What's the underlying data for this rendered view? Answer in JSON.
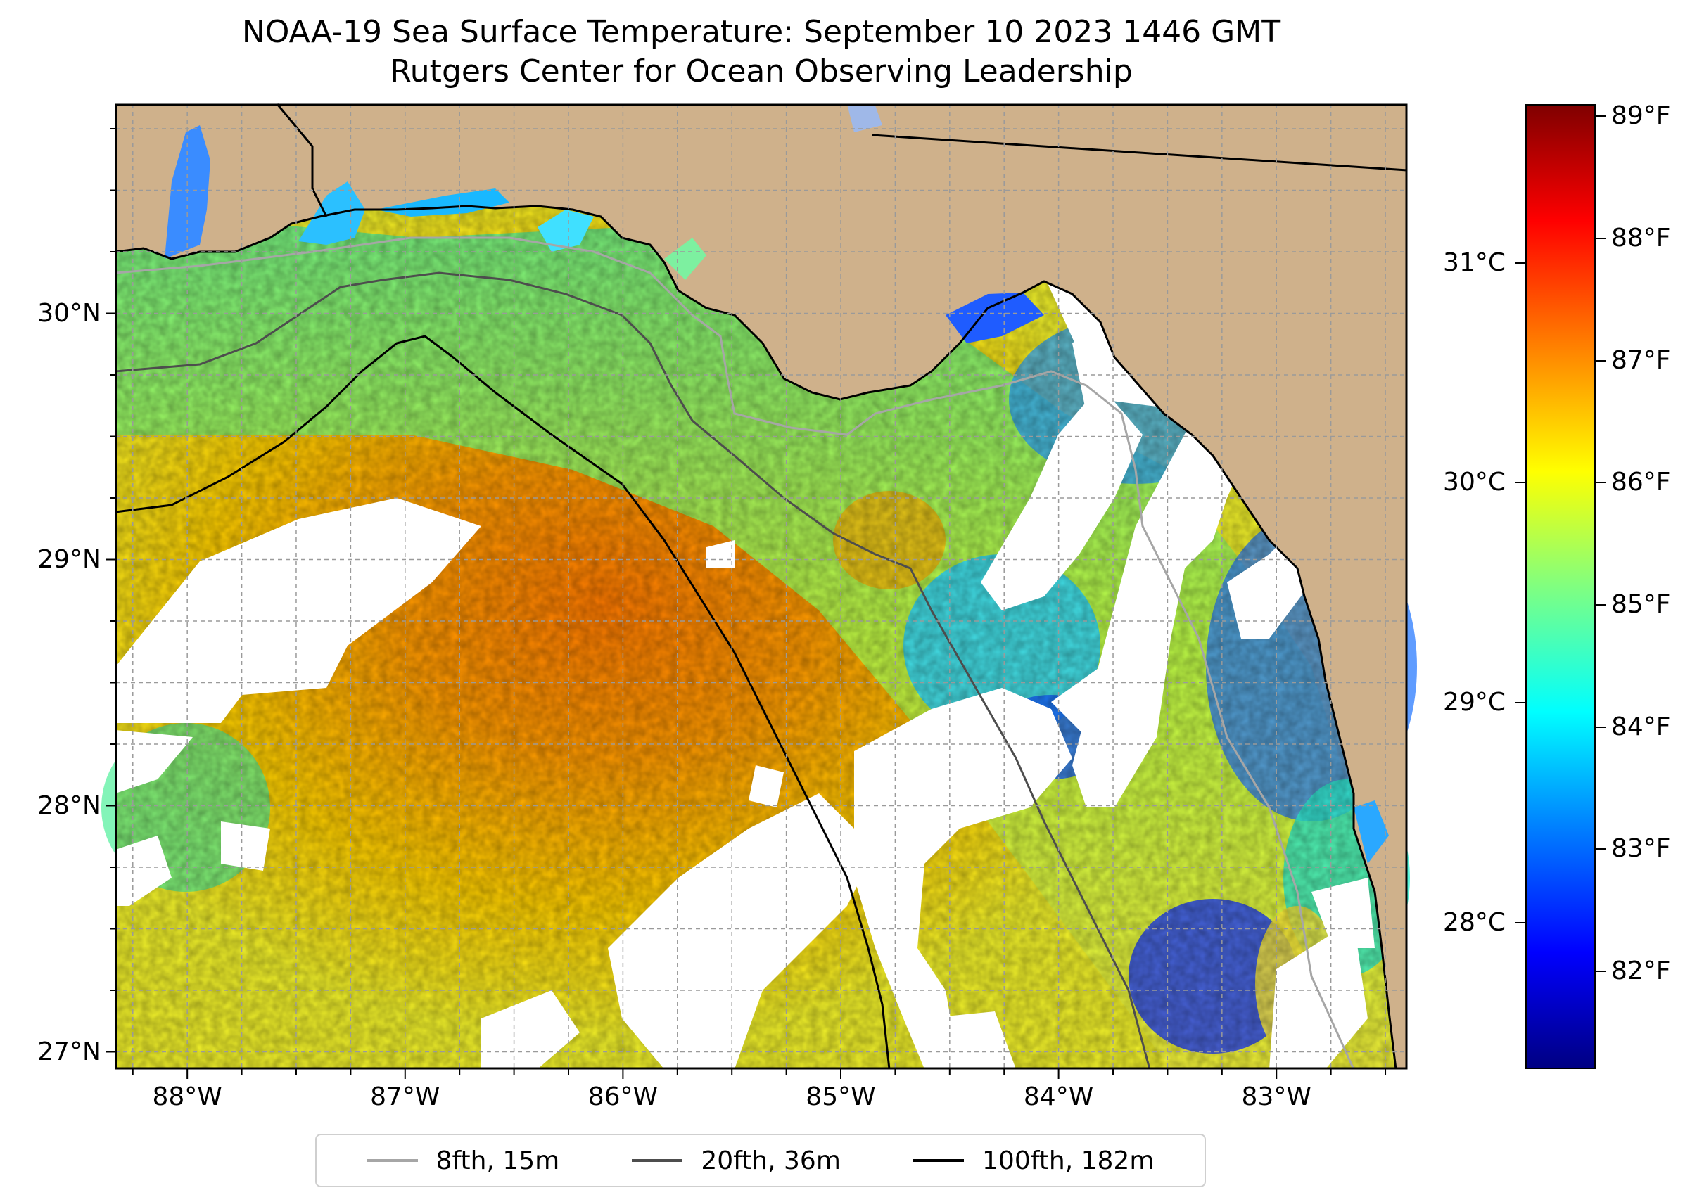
{
  "title": {
    "line1": "NOAA-19 Sea Surface Temperature: September 10 2023 1446 GMT",
    "line2": "Rutgers Center for Ocean Observing Leadership"
  },
  "map": {
    "lon_range": [
      -88.33,
      -82.4
    ],
    "lat_range": [
      26.93,
      30.85
    ],
    "lat_labels": [
      {
        "value": 30,
        "text": "30°N"
      },
      {
        "value": 29,
        "text": "29°N"
      },
      {
        "value": 28,
        "text": "28°N"
      },
      {
        "value": 27,
        "text": "27°N"
      }
    ],
    "lon_labels": [
      {
        "value": -88,
        "text": "88°W"
      },
      {
        "value": -87,
        "text": "87°W"
      },
      {
        "value": -86,
        "text": "86°W"
      },
      {
        "value": -85,
        "text": "85°W"
      },
      {
        "value": -84,
        "text": "84°W"
      },
      {
        "value": -83,
        "text": "83°W"
      }
    ],
    "gridlines": "dashed",
    "land_color": "#cfb18b",
    "cloud_color": "#ffffff"
  },
  "legend": {
    "position": "bottom-center",
    "items": [
      {
        "label": "8fth, 15m",
        "color": "#a6a6a6"
      },
      {
        "label": "20fth, 36m",
        "color": "#4d4d4d"
      },
      {
        "label": "100fth, 182m",
        "color": "#000000"
      }
    ]
  },
  "colorbar": {
    "colormap": "jet",
    "fahrenheit_range": [
      81.2,
      89.1
    ],
    "fahrenheit_ticks": [
      {
        "value": 82,
        "text": "82°F"
      },
      {
        "value": 83,
        "text": "83°F"
      },
      {
        "value": 84,
        "text": "84°F"
      },
      {
        "value": 85,
        "text": "85°F"
      },
      {
        "value": 86,
        "text": "86°F"
      },
      {
        "value": 87,
        "text": "87°F"
      },
      {
        "value": 88,
        "text": "88°F"
      },
      {
        "value": 89,
        "text": "89°F"
      }
    ],
    "celsius_ticks": [
      {
        "value": 28,
        "text": "28°C"
      },
      {
        "value": 29,
        "text": "29°C"
      },
      {
        "value": 30,
        "text": "30°C"
      },
      {
        "value": 31,
        "text": "31°C"
      }
    ]
  }
}
